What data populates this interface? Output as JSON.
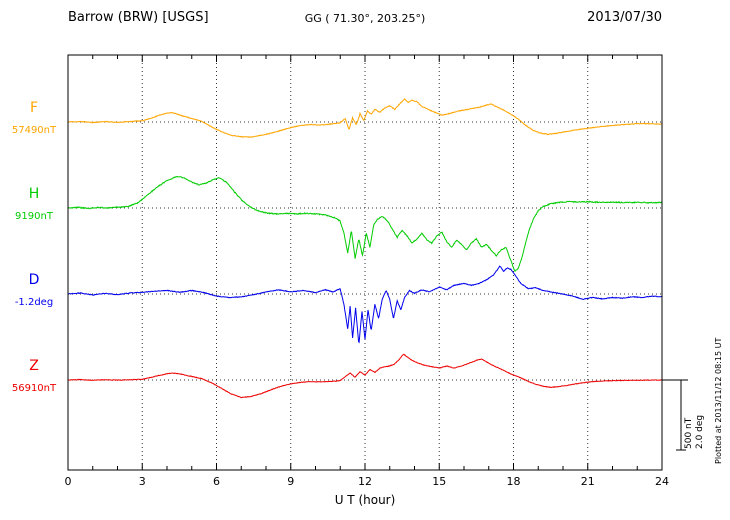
{
  "header": {
    "station": "Barrow (BRW) [USGS]",
    "coords": "GG ( 71.30°, 203.25°)",
    "date": "2013/07/30"
  },
  "xaxis": {
    "label": "U T (hour)",
    "ticks": [
      0,
      3,
      6,
      9,
      12,
      15,
      18,
      21,
      24
    ],
    "min": 0,
    "max": 24
  },
  "scale_bar": {
    "nt_label": "500 nT",
    "deg_label": "2.0 deg",
    "nt": 500,
    "deg": 2.0
  },
  "footer_note": "Plotted at 2013/11/12 08:15 UT",
  "chart_data": {
    "type": "line",
    "title": "Barrow (BRW) [USGS] magnetogram 2013/07/30",
    "xlabel": "U T (hour)",
    "xlim": [
      0,
      24
    ],
    "grid": "dotted vertical every 3 h; dotted horizontal baseline per component",
    "legend_position": "left margin, one colored label per trace",
    "scale": {
      "nT_per_bar": 500,
      "deg_per_bar": 2.0
    },
    "series": [
      {
        "id": "F",
        "label": "F",
        "baseline_label": "57490nT",
        "baseline_value": 57490,
        "unit": "nT",
        "color": "#FFA500",
        "noise": 5,
        "points": [
          [
            0,
            0
          ],
          [
            0.5,
            4
          ],
          [
            1,
            -4
          ],
          [
            1.5,
            3
          ],
          [
            2,
            -3
          ],
          [
            2.5,
            4
          ],
          [
            3,
            8
          ],
          [
            3.4,
            30
          ],
          [
            3.8,
            55
          ],
          [
            4.2,
            68
          ],
          [
            4.6,
            45
          ],
          [
            5,
            25
          ],
          [
            5.4,
            5
          ],
          [
            5.8,
            -35
          ],
          [
            6.2,
            -70
          ],
          [
            6.6,
            -95
          ],
          [
            7,
            -105
          ],
          [
            7.4,
            -108
          ],
          [
            7.8,
            -95
          ],
          [
            8.2,
            -80
          ],
          [
            8.6,
            -60
          ],
          [
            9,
            -40
          ],
          [
            9.4,
            -25
          ],
          [
            9.8,
            -18
          ],
          [
            10.2,
            -22
          ],
          [
            10.6,
            -15
          ],
          [
            11,
            -5
          ],
          [
            11.2,
            25
          ],
          [
            11.35,
            -55
          ],
          [
            11.5,
            30
          ],
          [
            11.65,
            -20
          ],
          [
            11.8,
            60
          ],
          [
            11.95,
            10
          ],
          [
            12.1,
            80
          ],
          [
            12.25,
            55
          ],
          [
            12.4,
            90
          ],
          [
            12.6,
            70
          ],
          [
            12.8,
            100
          ],
          [
            13,
            115
          ],
          [
            13.2,
            90
          ],
          [
            13.4,
            130
          ],
          [
            13.6,
            165
          ],
          [
            13.75,
            140
          ],
          [
            13.9,
            155
          ],
          [
            14.1,
            145
          ],
          [
            14.3,
            110
          ],
          [
            14.5,
            95
          ],
          [
            14.8,
            70
          ],
          [
            15.1,
            50
          ],
          [
            15.4,
            60
          ],
          [
            15.7,
            75
          ],
          [
            16,
            85
          ],
          [
            16.3,
            95
          ],
          [
            16.6,
            105
          ],
          [
            16.9,
            120
          ],
          [
            17.1,
            128
          ],
          [
            17.3,
            110
          ],
          [
            17.6,
            85
          ],
          [
            17.9,
            55
          ],
          [
            18.2,
            20
          ],
          [
            18.5,
            -25
          ],
          [
            18.8,
            -60
          ],
          [
            19.1,
            -80
          ],
          [
            19.4,
            -88
          ],
          [
            19.7,
            -82
          ],
          [
            20,
            -72
          ],
          [
            20.4,
            -60
          ],
          [
            20.8,
            -50
          ],
          [
            21.2,
            -40
          ],
          [
            21.6,
            -32
          ],
          [
            22,
            -25
          ],
          [
            22.5,
            -18
          ],
          [
            23,
            -12
          ],
          [
            23.5,
            -12
          ],
          [
            24,
            -15
          ]
        ]
      },
      {
        "id": "H",
        "label": "H",
        "baseline_label": "9190nT",
        "baseline_value": 9190,
        "unit": "nT",
        "color": "#00CC00",
        "noise": 7,
        "points": [
          [
            0,
            0
          ],
          [
            0.4,
            5
          ],
          [
            0.8,
            -3
          ],
          [
            1.2,
            4
          ],
          [
            1.6,
            0
          ],
          [
            2,
            6
          ],
          [
            2.4,
            10
          ],
          [
            2.8,
            35
          ],
          [
            3.2,
            90
          ],
          [
            3.6,
            150
          ],
          [
            4,
            195
          ],
          [
            4.4,
            225
          ],
          [
            4.7,
            215
          ],
          [
            5,
            185
          ],
          [
            5.3,
            165
          ],
          [
            5.6,
            180
          ],
          [
            5.9,
            205
          ],
          [
            6.1,
            215
          ],
          [
            6.4,
            185
          ],
          [
            6.7,
            120
          ],
          [
            7,
            60
          ],
          [
            7.3,
            15
          ],
          [
            7.6,
            -15
          ],
          [
            8,
            -35
          ],
          [
            8.4,
            -42
          ],
          [
            8.8,
            -38
          ],
          [
            9.2,
            -42
          ],
          [
            9.6,
            -38
          ],
          [
            10,
            -42
          ],
          [
            10.4,
            -50
          ],
          [
            10.8,
            -70
          ],
          [
            11,
            -95
          ],
          [
            11.15,
            -180
          ],
          [
            11.3,
            -320
          ],
          [
            11.45,
            -160
          ],
          [
            11.6,
            -360
          ],
          [
            11.75,
            -220
          ],
          [
            11.9,
            -340
          ],
          [
            12.05,
            -180
          ],
          [
            12.2,
            -280
          ],
          [
            12.35,
            -120
          ],
          [
            12.5,
            -80
          ],
          [
            12.7,
            -60
          ],
          [
            12.9,
            -90
          ],
          [
            13.1,
            -150
          ],
          [
            13.3,
            -210
          ],
          [
            13.5,
            -160
          ],
          [
            13.7,
            -200
          ],
          [
            13.9,
            -250
          ],
          [
            14.1,
            -220
          ],
          [
            14.3,
            -180
          ],
          [
            14.5,
            -230
          ],
          [
            14.7,
            -250
          ],
          [
            14.9,
            -200
          ],
          [
            15.1,
            -170
          ],
          [
            15.3,
            -240
          ],
          [
            15.5,
            -280
          ],
          [
            15.7,
            -230
          ],
          [
            15.9,
            -260
          ],
          [
            16.1,
            -300
          ],
          [
            16.3,
            -250
          ],
          [
            16.5,
            -220
          ],
          [
            16.7,
            -280
          ],
          [
            16.9,
            -260
          ],
          [
            17.1,
            -300
          ],
          [
            17.3,
            -340
          ],
          [
            17.5,
            -300
          ],
          [
            17.7,
            -280
          ],
          [
            17.9,
            -380
          ],
          [
            18.05,
            -450
          ],
          [
            18.2,
            -430
          ],
          [
            18.35,
            -350
          ],
          [
            18.5,
            -240
          ],
          [
            18.65,
            -150
          ],
          [
            18.8,
            -80
          ],
          [
            19,
            -20
          ],
          [
            19.2,
            10
          ],
          [
            19.5,
            30
          ],
          [
            19.8,
            40
          ],
          [
            20.2,
            45
          ],
          [
            20.6,
            42
          ],
          [
            21,
            45
          ],
          [
            21.5,
            40
          ],
          [
            22,
            42
          ],
          [
            22.5,
            38
          ],
          [
            23,
            40
          ],
          [
            23.5,
            38
          ],
          [
            24,
            40
          ]
        ]
      },
      {
        "id": "D",
        "label": "D",
        "baseline_label": "-1.2deg",
        "baseline_value": -1.2,
        "unit": "deg",
        "color": "#0000EE",
        "noise": 0.02,
        "points": [
          [
            0,
            0
          ],
          [
            0.5,
            0.03
          ],
          [
            1,
            -0.03
          ],
          [
            1.5,
            0.02
          ],
          [
            2,
            -0.02
          ],
          [
            2.5,
            0.03
          ],
          [
            3,
            0.05
          ],
          [
            3.5,
            0.08
          ],
          [
            4,
            0.1
          ],
          [
            4.5,
            0.05
          ],
          [
            5,
            0.1
          ],
          [
            5.5,
            0.04
          ],
          [
            6,
            -0.06
          ],
          [
            6.5,
            -0.1
          ],
          [
            7,
            -0.08
          ],
          [
            7.5,
            -0.02
          ],
          [
            8,
            0.06
          ],
          [
            8.5,
            0.12
          ],
          [
            9,
            0.06
          ],
          [
            9.5,
            0.1
          ],
          [
            10,
            0.04
          ],
          [
            10.4,
            0.12
          ],
          [
            10.7,
            0.06
          ],
          [
            11,
            0.15
          ],
          [
            11.15,
            -0.3
          ],
          [
            11.3,
            -1.0
          ],
          [
            11.4,
            -0.35
          ],
          [
            11.5,
            -1.25
          ],
          [
            11.62,
            -0.4
          ],
          [
            11.75,
            -1.45
          ],
          [
            11.88,
            -0.5
          ],
          [
            12,
            -1.3
          ],
          [
            12.12,
            -0.45
          ],
          [
            12.25,
            -1.05
          ],
          [
            12.4,
            -0.3
          ],
          [
            12.55,
            -0.7
          ],
          [
            12.7,
            -0.15
          ],
          [
            12.85,
            0.1
          ],
          [
            13,
            -0.15
          ],
          [
            13.15,
            -0.7
          ],
          [
            13.3,
            -0.2
          ],
          [
            13.45,
            -0.45
          ],
          [
            13.6,
            -0.1
          ],
          [
            13.8,
            0.1
          ],
          [
            14,
            0.02
          ],
          [
            14.3,
            0.12
          ],
          [
            14.6,
            0.06
          ],
          [
            15,
            0.2
          ],
          [
            15.3,
            0.12
          ],
          [
            15.6,
            0.25
          ],
          [
            16,
            0.3
          ],
          [
            16.3,
            0.25
          ],
          [
            16.6,
            0.3
          ],
          [
            16.9,
            0.4
          ],
          [
            17.2,
            0.55
          ],
          [
            17.45,
            0.8
          ],
          [
            17.6,
            0.65
          ],
          [
            17.75,
            0.75
          ],
          [
            17.9,
            0.7
          ],
          [
            18.1,
            0.5
          ],
          [
            18.3,
            0.3
          ],
          [
            18.6,
            0.15
          ],
          [
            18.9,
            0.18
          ],
          [
            19.2,
            0.1
          ],
          [
            19.6,
            0.05
          ],
          [
            20,
            0
          ],
          [
            20.4,
            -0.06
          ],
          [
            20.8,
            -0.15
          ],
          [
            21.2,
            -0.1
          ],
          [
            21.6,
            -0.14
          ],
          [
            22,
            -0.1
          ],
          [
            22.4,
            -0.12
          ],
          [
            22.8,
            -0.08
          ],
          [
            23.2,
            -0.1
          ],
          [
            23.6,
            -0.06
          ],
          [
            24,
            -0.08
          ]
        ]
      },
      {
        "id": "Z",
        "label": "Z",
        "baseline_label": "56910nT",
        "baseline_value": 56910,
        "unit": "nT",
        "color": "#EE0000",
        "noise": 4,
        "points": [
          [
            0,
            0
          ],
          [
            0.5,
            3
          ],
          [
            1,
            -2
          ],
          [
            1.5,
            2
          ],
          [
            2,
            -1
          ],
          [
            2.5,
            2
          ],
          [
            3,
            5
          ],
          [
            3.5,
            25
          ],
          [
            4,
            45
          ],
          [
            4.3,
            50
          ],
          [
            4.6,
            40
          ],
          [
            5,
            25
          ],
          [
            5.4,
            10
          ],
          [
            5.8,
            -20
          ],
          [
            6.2,
            -60
          ],
          [
            6.6,
            -100
          ],
          [
            7,
            -125
          ],
          [
            7.4,
            -118
          ],
          [
            7.8,
            -98
          ],
          [
            8.2,
            -70
          ],
          [
            8.6,
            -45
          ],
          [
            9,
            -28
          ],
          [
            9.4,
            -16
          ],
          [
            9.8,
            -12
          ],
          [
            10.2,
            -14
          ],
          [
            10.6,
            -10
          ],
          [
            11,
            -5
          ],
          [
            11.2,
            25
          ],
          [
            11.4,
            50
          ],
          [
            11.6,
            20
          ],
          [
            11.8,
            60
          ],
          [
            12,
            35
          ],
          [
            12.2,
            75
          ],
          [
            12.4,
            55
          ],
          [
            12.6,
            85
          ],
          [
            12.8,
            95
          ],
          [
            13,
            100
          ],
          [
            13.2,
            115
          ],
          [
            13.4,
            150
          ],
          [
            13.55,
            185
          ],
          [
            13.7,
            165
          ],
          [
            13.9,
            140
          ],
          [
            14.1,
            125
          ],
          [
            14.4,
            105
          ],
          [
            14.7,
            95
          ],
          [
            15,
            85
          ],
          [
            15.3,
            100
          ],
          [
            15.6,
            85
          ],
          [
            15.9,
            100
          ],
          [
            16.2,
            120
          ],
          [
            16.5,
            140
          ],
          [
            16.7,
            150
          ],
          [
            16.9,
            130
          ],
          [
            17.1,
            110
          ],
          [
            17.4,
            85
          ],
          [
            17.7,
            60
          ],
          [
            18,
            35
          ],
          [
            18.3,
            15
          ],
          [
            18.6,
            -10
          ],
          [
            18.9,
            -30
          ],
          [
            19.2,
            -45
          ],
          [
            19.5,
            -52
          ],
          [
            19.8,
            -48
          ],
          [
            20.1,
            -40
          ],
          [
            20.5,
            -28
          ],
          [
            21,
            -15
          ],
          [
            21.5,
            -8
          ],
          [
            22,
            -5
          ],
          [
            22.5,
            -3
          ],
          [
            23,
            -2
          ],
          [
            23.5,
            -1
          ],
          [
            24,
            0
          ]
        ]
      }
    ]
  }
}
